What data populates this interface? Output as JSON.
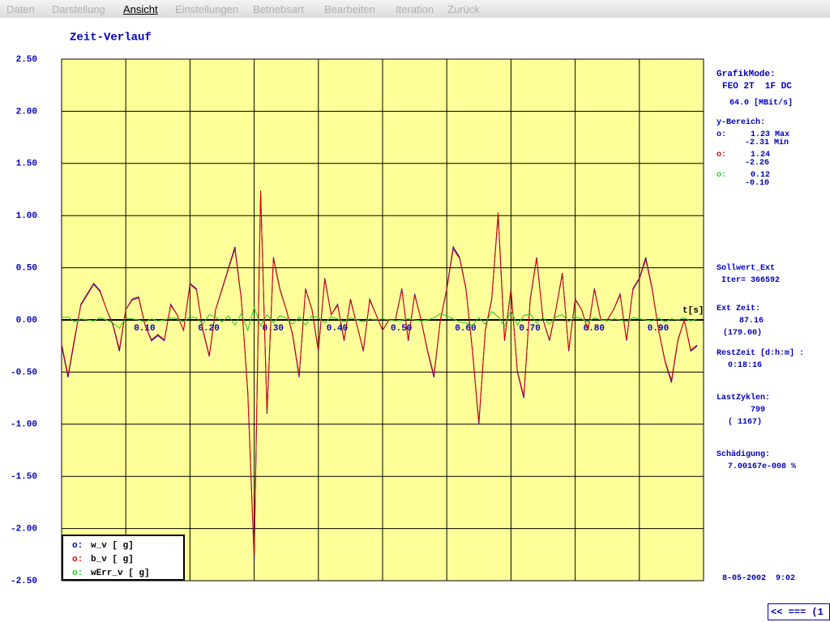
{
  "menu": {
    "items": [
      "Daten",
      "Darstellung",
      "Ansicht",
      "Einstellungen",
      "Betriebsart",
      "Bearbeiten",
      "Iteration",
      "Zurück"
    ]
  },
  "chart_data": {
    "type": "line",
    "title": "Zeit-Verlauf",
    "x_label": "t[s]",
    "legend_marker": "o:",
    "x": [
      0,
      0.01,
      0.02,
      0.03,
      0.04,
      0.05,
      0.06,
      0.07,
      0.08,
      0.09,
      0.1,
      0.11,
      0.12,
      0.13,
      0.14,
      0.15,
      0.16,
      0.17,
      0.18,
      0.19,
      0.2,
      0.21,
      0.22,
      0.23,
      0.24,
      0.25,
      0.26,
      0.27,
      0.28,
      0.29,
      0.3,
      0.31,
      0.32,
      0.33,
      0.34,
      0.35,
      0.36,
      0.37,
      0.38,
      0.39,
      0.4,
      0.41,
      0.42,
      0.43,
      0.44,
      0.45,
      0.46,
      0.47,
      0.48,
      0.49,
      0.5,
      0.51,
      0.52,
      0.53,
      0.54,
      0.55,
      0.56,
      0.57,
      0.58,
      0.59,
      0.6,
      0.61,
      0.62,
      0.63,
      0.64,
      0.65,
      0.66,
      0.67,
      0.68,
      0.69,
      0.7,
      0.71,
      0.72,
      0.73,
      0.74,
      0.75,
      0.76,
      0.77,
      0.78,
      0.79,
      0.8,
      0.81,
      0.82,
      0.83,
      0.84,
      0.85,
      0.86,
      0.87,
      0.88,
      0.89,
      0.9,
      0.91,
      0.92,
      0.93,
      0.94,
      0.95,
      0.96,
      0.97,
      0.98,
      0.99
    ],
    "series": [
      {
        "name": "w_v [ g]",
        "color": "#0000cc",
        "values": [
          -0.25,
          -0.55,
          -0.2,
          0.15,
          0.25,
          0.35,
          0.28,
          0.1,
          -0.05,
          -0.3,
          0.1,
          0.2,
          0.22,
          -0.05,
          -0.2,
          -0.15,
          -0.2,
          0.15,
          0.05,
          -0.1,
          0.35,
          0.3,
          -0.1,
          -0.35,
          0.1,
          0.3,
          0.5,
          0.7,
          0.2,
          -0.7,
          -2.31,
          1.23,
          -0.9,
          0.6,
          0.3,
          0.1,
          -0.15,
          -0.55,
          0.3,
          0.1,
          -0.3,
          0.4,
          0.05,
          0.15,
          -0.2,
          0.2,
          -0.05,
          -0.3,
          0.2,
          0.05,
          -0.1,
          0,
          0,
          0.3,
          -0.2,
          0.25,
          0,
          -0.3,
          -0.55,
          0,
          0.3,
          0.7,
          0.6,
          0.3,
          -0.3,
          -1,
          -0.1,
          0.2,
          1,
          -0.2,
          0.3,
          -0.5,
          -0.75,
          0.2,
          0.6,
          0,
          -0.2,
          0.1,
          0.45,
          -0.3,
          0.2,
          0.1,
          -0.1,
          0.3,
          0,
          0,
          0.1,
          0.25,
          -0.2,
          0.3,
          0.4,
          0.6,
          0.3,
          -0.1,
          -0.4,
          -0.6,
          -0.2,
          0,
          -0.3,
          -0.25
        ]
      },
      {
        "name": "b_v [ g]",
        "color": "#dd0000",
        "values": [
          -0.23,
          -0.53,
          -0.18,
          0.14,
          0.24,
          0.34,
          0.27,
          0.1,
          -0.04,
          -0.28,
          0.1,
          0.19,
          0.21,
          -0.05,
          -0.19,
          -0.14,
          -0.19,
          0.14,
          0.05,
          -0.1,
          0.34,
          0.29,
          -0.09,
          -0.34,
          0.1,
          0.29,
          0.49,
          0.68,
          0.19,
          -0.68,
          -2.26,
          1.24,
          -0.88,
          0.59,
          0.29,
          0.1,
          -0.14,
          -0.53,
          0.29,
          0.1,
          -0.29,
          0.39,
          0.05,
          0.14,
          -0.19,
          0.19,
          -0.05,
          -0.29,
          0.19,
          0.05,
          -0.1,
          0,
          0,
          0.29,
          -0.19,
          0.24,
          0,
          -0.29,
          -0.53,
          0,
          0.29,
          0.68,
          0.59,
          0.29,
          -0.29,
          -0.98,
          -0.1,
          0.19,
          1.03,
          -0.19,
          0.29,
          -0.49,
          -0.73,
          0.19,
          0.59,
          0,
          -0.19,
          0.1,
          0.44,
          -0.29,
          0.19,
          0.1,
          -0.1,
          0.29,
          0,
          0,
          0.1,
          0.24,
          -0.19,
          0.29,
          0.39,
          0.58,
          0.29,
          -0.1,
          -0.39,
          -0.58,
          -0.19,
          0,
          -0.29,
          -0.24
        ]
      },
      {
        "name": "wErr_v [ g]",
        "color": "#22cc22",
        "values": [
          0.02,
          0.03,
          -0.02,
          0.01,
          0,
          -0.01,
          0.02,
          0,
          -0.03,
          -0.08,
          0.02,
          0.01,
          0,
          -0.02,
          0.01,
          -0.01,
          0,
          0.02,
          0.01,
          -0.02,
          0.03,
          0.02,
          -0.04,
          0.05,
          0.03,
          -0.02,
          0.04,
          -0.05,
          0.06,
          -0.1,
          0.12,
          -0.06,
          0.05,
          -0.03,
          0.04,
          0.02,
          -0.04,
          0.03,
          -0.05,
          0.04,
          0.02,
          -0.03,
          0.03,
          0.01,
          -0.02,
          0.02,
          0,
          -0.02,
          0.01,
          0,
          0.01,
          0,
          -0.01,
          0,
          0.01,
          0,
          -0.01,
          0,
          0.02,
          0.06,
          0.04,
          0.01,
          -0.02,
          -0.03,
          -0.05,
          0.02,
          -0.04,
          0.08,
          0.03,
          -0.06,
          0.09,
          -0.05,
          0.04,
          0.06,
          -0.03,
          0.02,
          -0.04,
          0.03,
          0.05,
          -0.02,
          0.03,
          0.01,
          -0.02,
          0.02,
          0,
          -0.01,
          0.01,
          0,
          -0.02,
          0.02,
          0.01,
          0,
          -0.01,
          0.02,
          -0.02,
          0.01,
          0,
          0.02,
          -0.01,
          0.01
        ]
      }
    ],
    "xlim": [
      0,
      1
    ],
    "xticks": [
      {
        "value": 0.1,
        "label": "0.10"
      },
      {
        "value": 0.2,
        "label": "0.20"
      },
      {
        "value": 0.3,
        "label": "0.30"
      },
      {
        "value": 0.4,
        "label": "0.40"
      },
      {
        "value": 0.5,
        "label": "0.50"
      },
      {
        "value": 0.6,
        "label": "0.60"
      },
      {
        "value": 0.7,
        "label": "0.70"
      },
      {
        "value": 0.8,
        "label": "0.80"
      },
      {
        "value": 0.9,
        "label": "0.90"
      }
    ],
    "ylim": [
      -2.5,
      2.5
    ],
    "yticks": [
      {
        "value": 2.5,
        "label": "2.50"
      },
      {
        "value": 2,
        "label": "2.00"
      },
      {
        "value": 1.5,
        "label": "1.50"
      },
      {
        "value": 1,
        "label": "1.00"
      },
      {
        "value": 0.5,
        "label": "0.50"
      },
      {
        "value": 0,
        "label": "0.00"
      },
      {
        "value": -0.5,
        "label": "-0.50"
      },
      {
        "value": -1,
        "label": "-1.00"
      },
      {
        "value": -1.5,
        "label": "-1.50"
      },
      {
        "value": -2,
        "label": "-2.00"
      },
      {
        "value": -2.5,
        "label": "-2.50"
      }
    ],
    "grid": true,
    "legend": "lower left"
  },
  "side_panel": {
    "mode_label": "GrafikMode:",
    "mode": "FEO 2T  1F DC",
    "rate": "64.0 [MBit/s]",
    "range_label": "y-Bereich:",
    "ranges": [
      {
        "marker": "o:",
        "max": "1.23 Max",
        "min": "-2.31 Min"
      },
      {
        "marker": "o:",
        "max": "1.24",
        "min": "-2.26"
      },
      {
        "marker": "o:",
        "max": "0.12",
        "min": "-0.10"
      }
    ],
    "sollwert": "Sollwert_Ext",
    "iter": "Iter= 366592",
    "ext_label": "Ext Zeit:",
    "ext_value": "87.16",
    "ext_total": "(179.00)",
    "rest_label": "RestZeit [d:h:m] :",
    "rest_value": "0:18:16",
    "cycles_label": "LastZyklen:",
    "cycles_value": "799",
    "cycles_total": "( 1167)",
    "damage_label": "Schädigung:",
    "damage_value": "7.00167e-008 %"
  },
  "footer": {
    "date": "8-05-2002  9:02",
    "button": "<< === (1"
  }
}
